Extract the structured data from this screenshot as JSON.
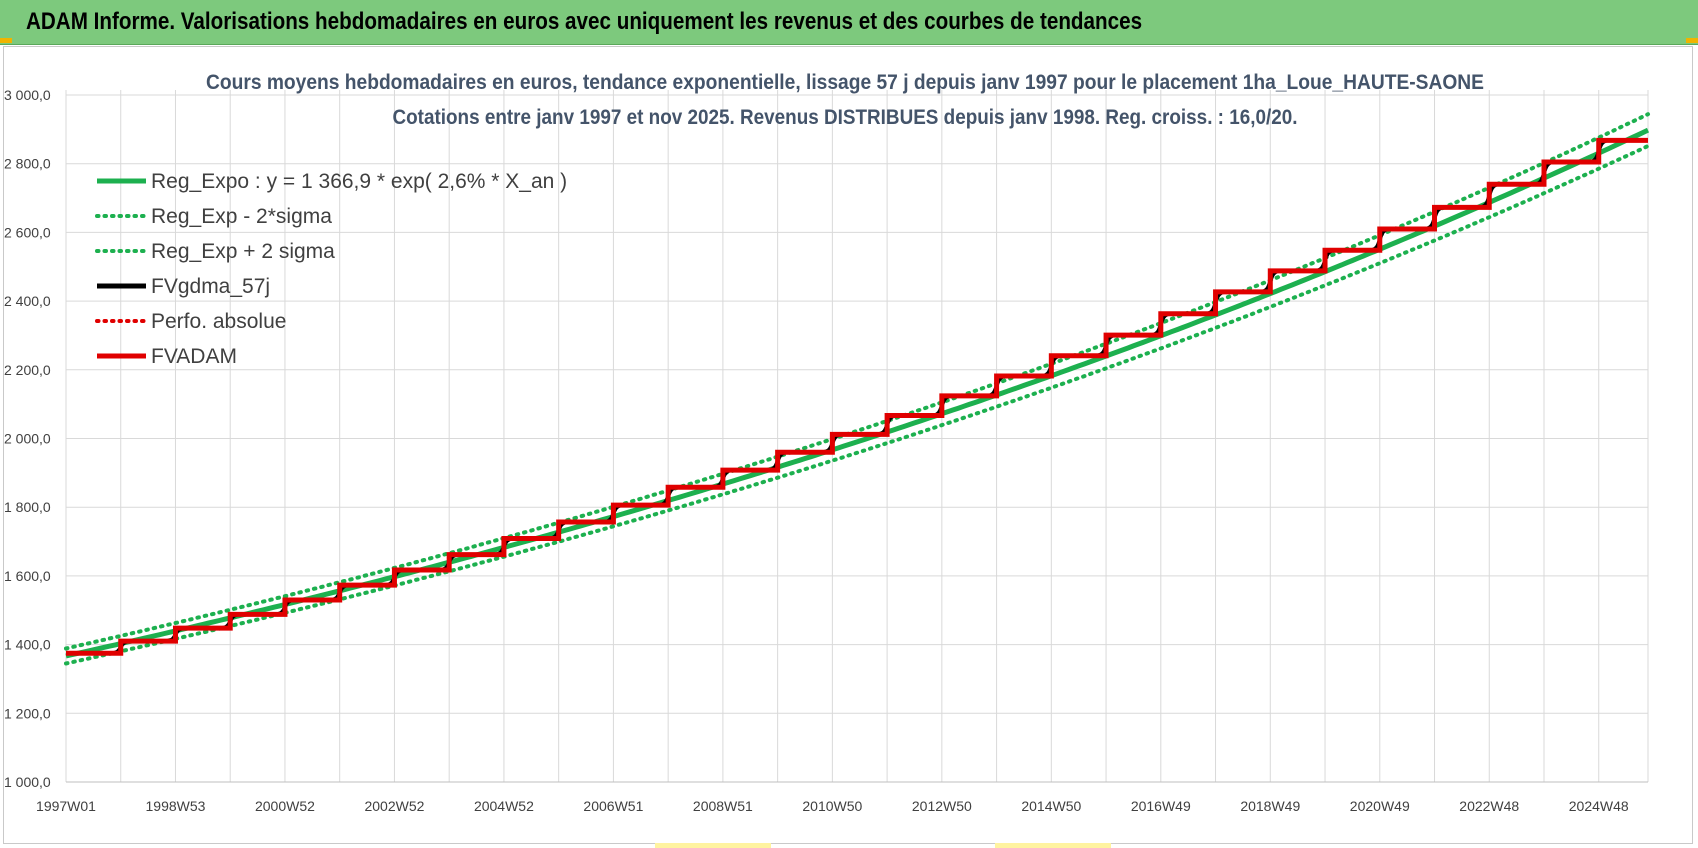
{
  "header": {
    "title": "ADAM Informe. Valorisations hebdomadaires en euros avec uniquement les revenus et des courbes de tendances"
  },
  "colors": {
    "header_bg": "#7dc97d",
    "trend": "#1db04f",
    "band": "#1db04f",
    "gdma": "#000000",
    "perf": "#e00000",
    "fvadam": "#e00000",
    "title": "#44546a"
  },
  "chart_data": {
    "type": "line",
    "title": "Cours moyens hebdomadaires en euros, tendance exponentielle, lissage 57 j depuis janv 1997 pour le placement 1ha_Loue_HAUTE-SAONE",
    "subtitle": "Cotations entre janv 1997 et nov 2025. Revenus  DISTRIBUES depuis janv 1998.  Reg. croiss. : 16,0/20.",
    "xlabel": "",
    "ylabel": "",
    "ylim": [
      1000,
      3000
    ],
    "y_ticks": [
      "1 000,0",
      "1 200,0",
      "1 400,0",
      "1 600,0",
      "1 800,0",
      "2 000,0",
      "2 200,0",
      "2 400,0",
      "2 600,0",
      "2 800,0",
      "3 000,0"
    ],
    "y_tick_values": [
      1000,
      1200,
      1400,
      1600,
      1800,
      2000,
      2200,
      2400,
      2600,
      2800,
      3000
    ],
    "x_ticks": [
      "1997W01",
      "1998W53",
      "2000W52",
      "2002W52",
      "2004W52",
      "2006W51",
      "2008W51",
      "2010W50",
      "2012W50",
      "2014W50",
      "2016W49",
      "2018W49",
      "2020W49",
      "2022W48",
      "2024W48"
    ],
    "x_range_years": [
      1997.0,
      2025.9
    ],
    "grid": true,
    "legend_position": "top-left",
    "regression": {
      "base": 1366.9,
      "rate": 0.026,
      "sigma_band": 0.016
    },
    "legend": [
      {
        "label": "Reg_Expo : y = 1 366,9 * exp( 2,6% *  X_an )",
        "style": "solid",
        "color": "#1db04f"
      },
      {
        "label": "Reg_Exp - 2*sigma",
        "style": "dotted",
        "color": "#1db04f"
      },
      {
        "label": "Reg_Exp + 2 sigma",
        "style": "dotted",
        "color": "#1db04f"
      },
      {
        "label": "FVgdma_57j",
        "style": "solid",
        "color": "#000000"
      },
      {
        "label": "Perfo. absolue",
        "style": "dotted",
        "color": "#e00000"
      },
      {
        "label": "FVADAM",
        "style": "solid",
        "color": "#e00000"
      }
    ],
    "series": [
      {
        "name": "FVADAM",
        "step_years": [
          1997,
          1998,
          1999,
          2000,
          2001,
          2002,
          2003,
          2004,
          2005,
          2006,
          2007,
          2008,
          2009,
          2010,
          2011,
          2012,
          2013,
          2014,
          2015,
          2016,
          2017,
          2018,
          2019,
          2020,
          2021,
          2022,
          2023,
          2024,
          2025
        ],
        "values": [
          1375,
          1410,
          1448,
          1488,
          1530,
          1573,
          1617,
          1662,
          1709,
          1757,
          1806,
          1858,
          1908,
          1960,
          2012,
          2067,
          2124,
          2182,
          2241,
          2301,
          2363,
          2427,
          2488,
          2548,
          2610,
          2673,
          2740,
          2805,
          2868
        ]
      }
    ]
  }
}
